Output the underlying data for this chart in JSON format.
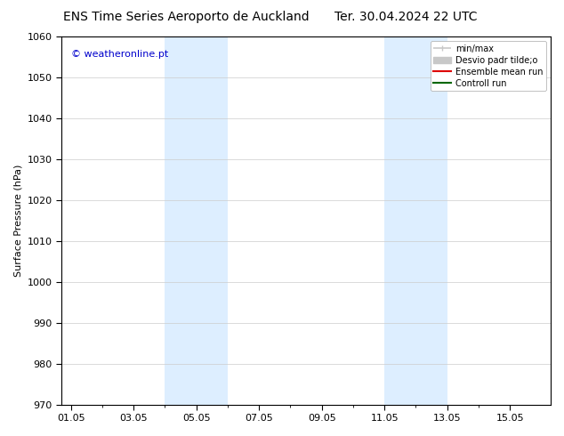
{
  "title": "ENS Time Series Aeroporto de Auckland",
  "title2": "Ter. 30.04.2024 22 UTC",
  "ylabel": "Surface Pressure (hPa)",
  "ylim": [
    970,
    1060
  ],
  "yticks": [
    970,
    980,
    990,
    1000,
    1010,
    1020,
    1030,
    1040,
    1050,
    1060
  ],
  "xtick_labels": [
    "01.05",
    "03.05",
    "05.05",
    "07.05",
    "09.05",
    "11.05",
    "13.05",
    "15.05"
  ],
  "xtick_positions": [
    0,
    2,
    4,
    6,
    8,
    10,
    12,
    14
  ],
  "xlim": [
    -0.3,
    15.3
  ],
  "shade_bands": [
    {
      "xstart": 3.0,
      "xend": 5.0
    },
    {
      "xstart": 10.0,
      "xend": 12.0
    }
  ],
  "shade_color": "#ddeeff",
  "copyright_text": "© weatheronline.pt",
  "copyright_color": "#0000cc",
  "bg_color": "#ffffff",
  "grid_color": "#cccccc",
  "title_fontsize": 10,
  "label_fontsize": 8,
  "tick_fontsize": 8,
  "copyright_fontsize": 8,
  "legend_minmax_color": "#c8c8c8",
  "legend_desvio_color": "#c8c8c8",
  "legend_ensemble_color": "#dd0000",
  "legend_control_color": "#006600"
}
